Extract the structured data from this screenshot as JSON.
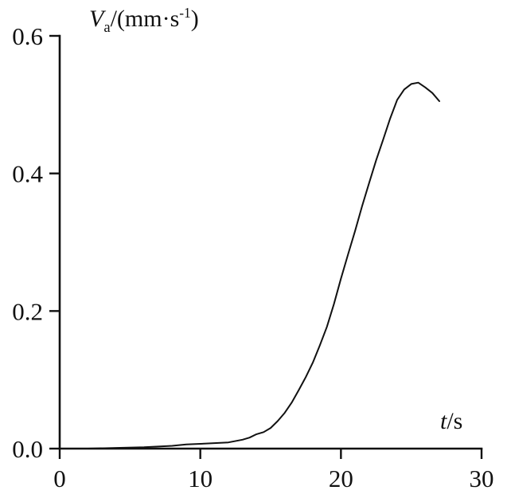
{
  "figure": {
    "background_color": "#ffffff",
    "line_color": "#111111"
  },
  "labels": {
    "y_variable": "V",
    "y_subscript": "a",
    "y_unit_prefix": "/(mm·s",
    "y_exponent": "-1",
    "y_unit_suffix": ")",
    "x_variable": "t",
    "x_unit": "/s"
  },
  "chart_data": {
    "type": "line",
    "title": "",
    "xlabel": "t/s",
    "ylabel": "V_a/(mm·s^-1)",
    "xlim": [
      0,
      30
    ],
    "ylim": [
      0.0,
      0.6
    ],
    "xticks": [
      0,
      10,
      20,
      30
    ],
    "xticklabels": [
      "0",
      "10",
      "20",
      "30"
    ],
    "yticks": [
      0.0,
      0.2,
      0.4,
      0.6
    ],
    "yticklabels": [
      "0.0",
      "0.2",
      "0.4",
      "0.6"
    ],
    "grid": false,
    "legend": "none",
    "series": [
      {
        "name": "Va",
        "x": [
          0,
          2,
          4,
          6,
          7,
          8,
          9,
          10,
          11,
          12,
          13,
          13.5,
          14,
          14.5,
          15,
          15.5,
          16,
          16.5,
          17,
          17.5,
          18,
          18.5,
          19,
          19.5,
          20,
          20.5,
          21,
          21.5,
          22,
          22.5,
          23,
          23.5,
          24,
          24.5,
          25,
          25.5,
          26,
          26.5,
          27
        ],
        "y": [
          0.0,
          0.0,
          0.001,
          0.002,
          0.003,
          0.004,
          0.006,
          0.007,
          0.008,
          0.009,
          0.013,
          0.016,
          0.021,
          0.024,
          0.03,
          0.04,
          0.052,
          0.067,
          0.085,
          0.104,
          0.125,
          0.15,
          0.177,
          0.21,
          0.247,
          0.282,
          0.316,
          0.352,
          0.386,
          0.419,
          0.449,
          0.48,
          0.507,
          0.522,
          0.53,
          0.532,
          0.525,
          0.517,
          0.505
        ]
      }
    ]
  }
}
